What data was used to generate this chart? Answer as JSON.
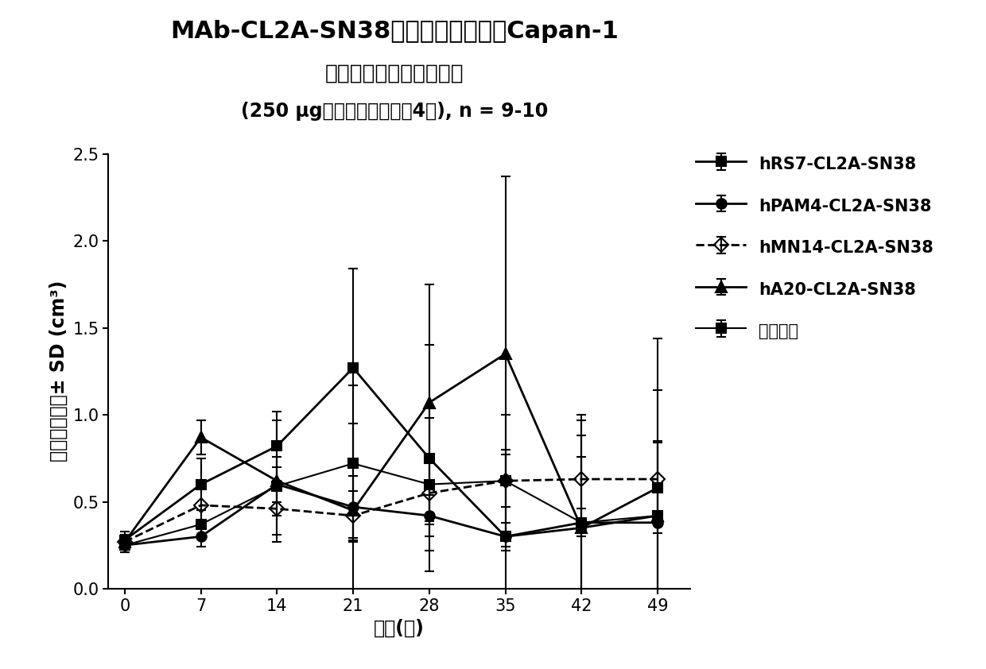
{
  "title_line1": "MAb-CL2A-SN38免疫缓合物在具有Capan-1",
  "title_line2": "肝癌的小鼠中的治疗功效",
  "title_line3": "(250 μg，每周二次，进行4周), n = 9-10",
  "xlabel": "时间(天)",
  "ylabel": "平均肝癌体积± SD (cm³)",
  "xvalues": [
    0,
    7,
    14,
    21,
    28,
    35,
    42,
    49
  ],
  "ylim": [
    0.0,
    2.5
  ],
  "yticks": [
    0.0,
    0.5,
    1.0,
    1.5,
    2.0,
    2.5
  ],
  "series": [
    {
      "label": "hRS7-CL2A-SN38",
      "y": [
        0.28,
        0.6,
        0.82,
        1.27,
        0.75,
        0.3,
        0.35,
        0.58
      ],
      "yerr": [
        0.05,
        0.15,
        0.2,
        0.57,
        0.65,
        0.5,
        0.62,
        0.86
      ],
      "color": "#000000",
      "marker": "s",
      "linestyle": "-",
      "linewidth": 2.0,
      "markersize": 9,
      "fillstyle": "full"
    },
    {
      "label": "hPAM4-CL2A-SN38",
      "y": [
        0.25,
        0.3,
        0.6,
        0.47,
        0.42,
        0.3,
        0.38,
        0.38
      ],
      "yerr": [
        0.04,
        0.06,
        0.1,
        0.18,
        0.12,
        0.08,
        0.08,
        0.06
      ],
      "color": "#000000",
      "marker": "o",
      "linestyle": "-",
      "linewidth": 2.0,
      "markersize": 9,
      "fillstyle": "full"
    },
    {
      "label": "hMN14-CL2A-SN38",
      "y": [
        0.27,
        0.48,
        0.46,
        0.42,
        0.55,
        0.62,
        0.63,
        0.63
      ],
      "yerr": [
        0.04,
        0.1,
        0.15,
        0.14,
        0.18,
        0.15,
        0.25,
        0.22
      ],
      "color": "#000000",
      "marker": "D",
      "linestyle": "--",
      "linewidth": 2.0,
      "markersize": 9,
      "fillstyle": "none"
    },
    {
      "label": "hA20-CL2A-SN38",
      "y": [
        0.27,
        0.87,
        0.62,
        0.45,
        1.07,
        1.35,
        0.35,
        0.42
      ],
      "yerr": [
        0.04,
        0.1,
        0.35,
        0.5,
        0.68,
        1.02,
        0.65,
        0.72
      ],
      "color": "#000000",
      "marker": "^",
      "linestyle": "-",
      "linewidth": 2.0,
      "markersize": 10,
      "fillstyle": "full"
    },
    {
      "label": "盐水对照",
      "y": [
        0.25,
        0.37,
        0.59,
        0.72,
        0.6,
        0.62,
        0.38,
        0.42
      ],
      "yerr": [
        0.04,
        0.08,
        0.17,
        0.45,
        0.38,
        0.38,
        0.38,
        0.42
      ],
      "color": "#000000",
      "marker": "s",
      "linestyle": "-",
      "linewidth": 1.5,
      "markersize": 8,
      "fillstyle": "full"
    }
  ],
  "background_color": "#ffffff",
  "title_fontsize": 22,
  "subtitle_fontsize": 19,
  "subtitle2_fontsize": 17,
  "axis_label_fontsize": 17,
  "tick_fontsize": 15,
  "legend_fontsize": 15
}
